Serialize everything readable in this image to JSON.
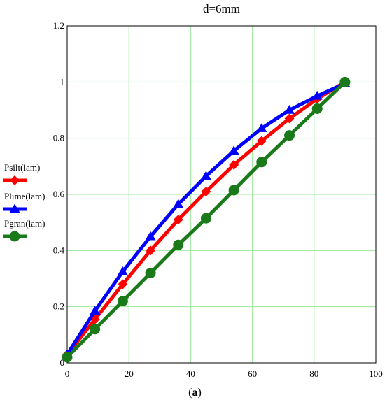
{
  "chart_data": {
    "type": "line",
    "title": "d=6mm",
    "caption": {
      "pre": "(",
      "bold": "a",
      "post": ")"
    },
    "xlabel": "",
    "ylabel": "",
    "xlim": [
      0,
      100
    ],
    "ylim": [
      0,
      1.2
    ],
    "x_ticks": [
      0,
      20,
      40,
      60,
      80,
      100
    ],
    "y_ticks": [
      0,
      0.2,
      0.4,
      0.6,
      0.8,
      1,
      1.2
    ],
    "x_tick_labels": [
      "0",
      "20",
      "40",
      "60",
      "80",
      "100"
    ],
    "y_tick_labels": [
      "0",
      "0.2",
      "0.4",
      "0.6",
      "0.8",
      "1",
      "1.2"
    ],
    "grid": true,
    "legend_position": "left",
    "x": [
      0,
      9,
      18,
      27,
      36,
      45,
      54,
      63,
      72,
      81,
      90
    ],
    "series": [
      {
        "name": "Psilt(lam)",
        "color": "#ff0000",
        "marker": "diamond",
        "values": [
          0.03,
          0.155,
          0.28,
          0.4,
          0.51,
          0.61,
          0.705,
          0.79,
          0.87,
          0.94,
          1.0
        ]
      },
      {
        "name": "Plime(lam)",
        "color": "#0000ff",
        "marker": "triangle",
        "values": [
          0.03,
          0.185,
          0.325,
          0.45,
          0.565,
          0.665,
          0.755,
          0.835,
          0.9,
          0.95,
          0.995
        ]
      },
      {
        "name": "Pgran(lam)",
        "color": "#1a7a1a",
        "marker": "circle",
        "values": [
          0.02,
          0.12,
          0.22,
          0.32,
          0.42,
          0.515,
          0.615,
          0.715,
          0.81,
          0.905,
          1.0
        ]
      }
    ]
  }
}
